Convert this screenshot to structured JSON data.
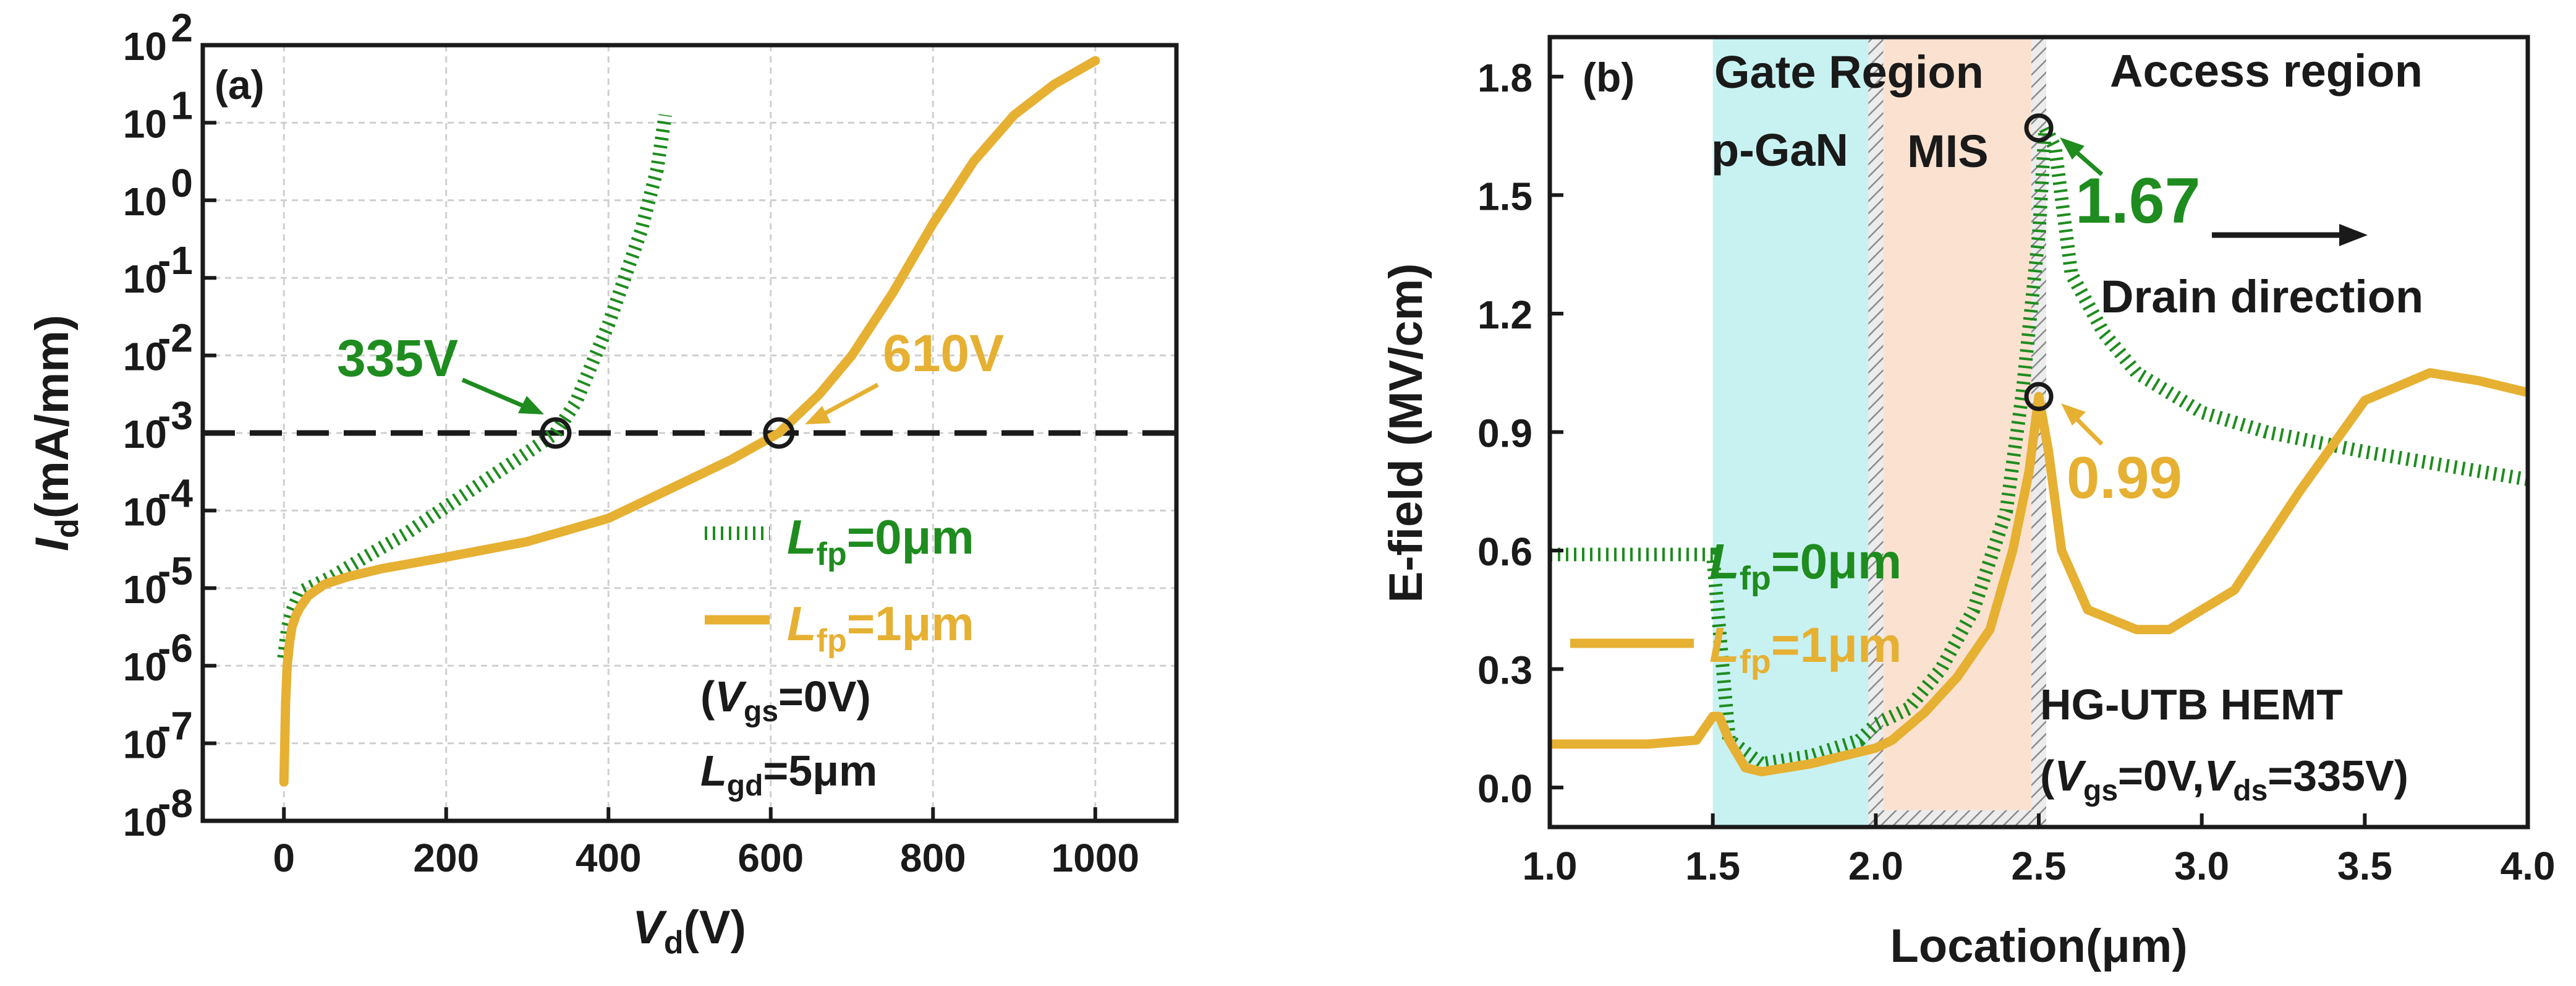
{
  "colors": {
    "green": "#1e8c1e",
    "gold": "#e6b032",
    "black": "#1a1a1a",
    "grid": "#cfcfcf",
    "cyan": "#c8f2f2",
    "peach": "#fbe2d0"
  },
  "chart_data": [
    {
      "type": "line",
      "panel_label": "(a)",
      "xlabel": {
        "main": "V",
        "sub": "d",
        "unit": "(V)"
      },
      "ylabel": {
        "main": "I",
        "sub": "d",
        "unit": "(mA/mm)"
      },
      "xlim": [
        -100,
        1100
      ],
      "ylim_log10": [
        -8,
        2
      ],
      "x_ticks": [
        0,
        200,
        400,
        600,
        800,
        1000
      ],
      "x_tick_labels": [
        "0",
        "200",
        "400",
        "600",
        "800",
        "1000"
      ],
      "y_ticks": [
        {
          "base": "10",
          "exp": "-8",
          "v": -8
        },
        {
          "base": "10",
          "exp": "-7",
          "v": -7
        },
        {
          "base": "10",
          "exp": "-6",
          "v": -6
        },
        {
          "base": "10",
          "exp": "-5",
          "v": -5
        },
        {
          "base": "10",
          "exp": "-4",
          "v": -4
        },
        {
          "base": "10",
          "exp": "-3",
          "v": -3
        },
        {
          "base": "10",
          "exp": "-2",
          "v": -2
        },
        {
          "base": "10",
          "exp": "-1",
          "v": -1
        },
        {
          "base": "10",
          "exp": "0",
          "v": 0
        },
        {
          "base": "10",
          "exp": "1",
          "v": 1
        },
        {
          "base": "10",
          "exp": "2",
          "v": 2
        }
      ],
      "series": [
        {
          "name": "Lfp=0μm",
          "style": "dotted",
          "color": "green",
          "x": [
            0,
            5,
            10,
            20,
            40,
            60,
            100,
            150,
            200,
            250,
            300,
            335,
            360,
            380,
            400,
            420,
            440,
            460,
            470
          ],
          "log10y": [
            -5.9,
            -5.5,
            -5.3,
            -5.05,
            -4.95,
            -4.85,
            -4.6,
            -4.3,
            -3.95,
            -3.6,
            -3.25,
            -3.0,
            -2.6,
            -2.1,
            -1.6,
            -1.0,
            -0.4,
            0.4,
            1.1
          ]
        },
        {
          "name": "Lfp=1μm",
          "style": "solid",
          "color": "gold",
          "x": [
            0,
            1,
            2,
            4,
            7,
            10,
            15,
            20,
            30,
            50,
            80,
            120,
            200,
            300,
            400,
            480,
            550,
            610,
            660,
            700,
            750,
            800,
            850,
            900,
            950,
            1000
          ],
          "log10y": [
            -7.5,
            -7,
            -6.5,
            -6,
            -5.7,
            -5.5,
            -5.35,
            -5.25,
            -5.1,
            -4.95,
            -4.85,
            -4.75,
            -4.6,
            -4.4,
            -4.1,
            -3.7,
            -3.35,
            -3.0,
            -2.5,
            -2.0,
            -1.2,
            -0.3,
            0.5,
            1.1,
            1.5,
            1.8
          ]
        }
      ],
      "reference_line": {
        "log10y": -3,
        "style": "dashed"
      },
      "markers": [
        {
          "x": 335,
          "log10y": -3
        },
        {
          "x": 610,
          "log10y": -3
        }
      ],
      "annotations": [
        {
          "text": "335V",
          "color": "green"
        },
        {
          "text": "610V",
          "color": "gold"
        }
      ],
      "legend": [
        {
          "main": "L",
          "sub": "fp",
          "rest": "=0μm",
          "color": "green"
        },
        {
          "main": "L",
          "sub": "fp",
          "rest": "=1μm",
          "color": "gold"
        }
      ],
      "conditions": [
        {
          "pre": "(",
          "main": "V",
          "sub": "gs",
          "rest": "=0V)"
        },
        {
          "pre": "",
          "main": "L",
          "sub": "gd",
          "rest": "=5μm"
        }
      ]
    },
    {
      "type": "line",
      "panel_label": "(b)",
      "xlabel": "Location(μm)",
      "ylabel": "E-field (MV/cm)",
      "xlim": [
        1.0,
        4.0
      ],
      "ylim": [
        -0.1,
        1.9
      ],
      "x_ticks": [
        1.0,
        1.5,
        2.0,
        2.5,
        3.0,
        3.5,
        4.0
      ],
      "x_tick_labels": [
        "1.0",
        "1.5",
        "2.0",
        "2.5",
        "3.0",
        "3.5",
        "4.0"
      ],
      "y_ticks": [
        0.0,
        0.3,
        0.6,
        0.9,
        1.2,
        1.5,
        1.8
      ],
      "y_tick_labels": [
        "0.0",
        "0.3",
        "0.6",
        "0.9",
        "1.2",
        "1.5",
        "1.8"
      ],
      "regions": [
        {
          "label": "p-GaN",
          "x0": 1.5,
          "x1": 2.0,
          "color": "cyan"
        },
        {
          "label": "MIS",
          "x0": 2.0,
          "x1": 2.5,
          "color": "peach"
        }
      ],
      "region_titles": {
        "gate": "Gate Region",
        "access": "Access region"
      },
      "series": [
        {
          "name": "Lfp=0μm",
          "style": "dotted",
          "color": "green",
          "x": [
            1.0,
            1.5,
            1.55,
            1.65,
            1.8,
            1.95,
            2.0,
            2.1,
            2.2,
            2.3,
            2.4,
            2.45,
            2.5,
            2.52,
            2.55,
            2.6,
            2.7,
            2.8,
            3.0,
            3.2,
            3.5,
            4.0
          ],
          "y": [
            0.59,
            0.59,
            0.12,
            0.06,
            0.08,
            0.12,
            0.16,
            0.2,
            0.3,
            0.45,
            0.7,
            1.0,
            1.4,
            1.67,
            1.62,
            1.3,
            1.15,
            1.05,
            0.95,
            0.9,
            0.85,
            0.78
          ]
        },
        {
          "name": "Lfp=1μm",
          "style": "solid",
          "color": "gold",
          "x": [
            1.0,
            1.3,
            1.45,
            1.5,
            1.52,
            1.55,
            1.6,
            1.65,
            1.8,
            2.0,
            2.05,
            2.15,
            2.25,
            2.35,
            2.42,
            2.47,
            2.5,
            2.53,
            2.57,
            2.65,
            2.8,
            2.9,
            3.1,
            3.3,
            3.5,
            3.7,
            3.85,
            4.0
          ],
          "y": [
            0.11,
            0.11,
            0.12,
            0.18,
            0.18,
            0.12,
            0.05,
            0.04,
            0.06,
            0.1,
            0.12,
            0.19,
            0.28,
            0.4,
            0.6,
            0.8,
            0.99,
            0.85,
            0.6,
            0.45,
            0.4,
            0.4,
            0.5,
            0.75,
            0.98,
            1.05,
            1.03,
            1.0
          ]
        }
      ],
      "markers": [
        {
          "x": 2.5,
          "y": 1.67
        },
        {
          "x": 2.5,
          "y": 0.99
        }
      ],
      "annotations": [
        {
          "text": "1.67",
          "color": "green"
        },
        {
          "text": "0.99",
          "color": "gold"
        },
        {
          "text": "Drain direction",
          "color": "black"
        }
      ],
      "legend": [
        {
          "main": "L",
          "sub": "fp",
          "rest": "=0μm",
          "color": "green"
        },
        {
          "main": "L",
          "sub": "fp",
          "rest": "=1μm",
          "color": "gold"
        }
      ],
      "device_label": "HG-UTB HEMT",
      "conditions": {
        "pre": "(",
        "m1": "V",
        "s1": "gs",
        "mid": "=0V,",
        "m2": "V",
        "s2": "ds",
        "rest": "=335V)"
      }
    }
  ]
}
